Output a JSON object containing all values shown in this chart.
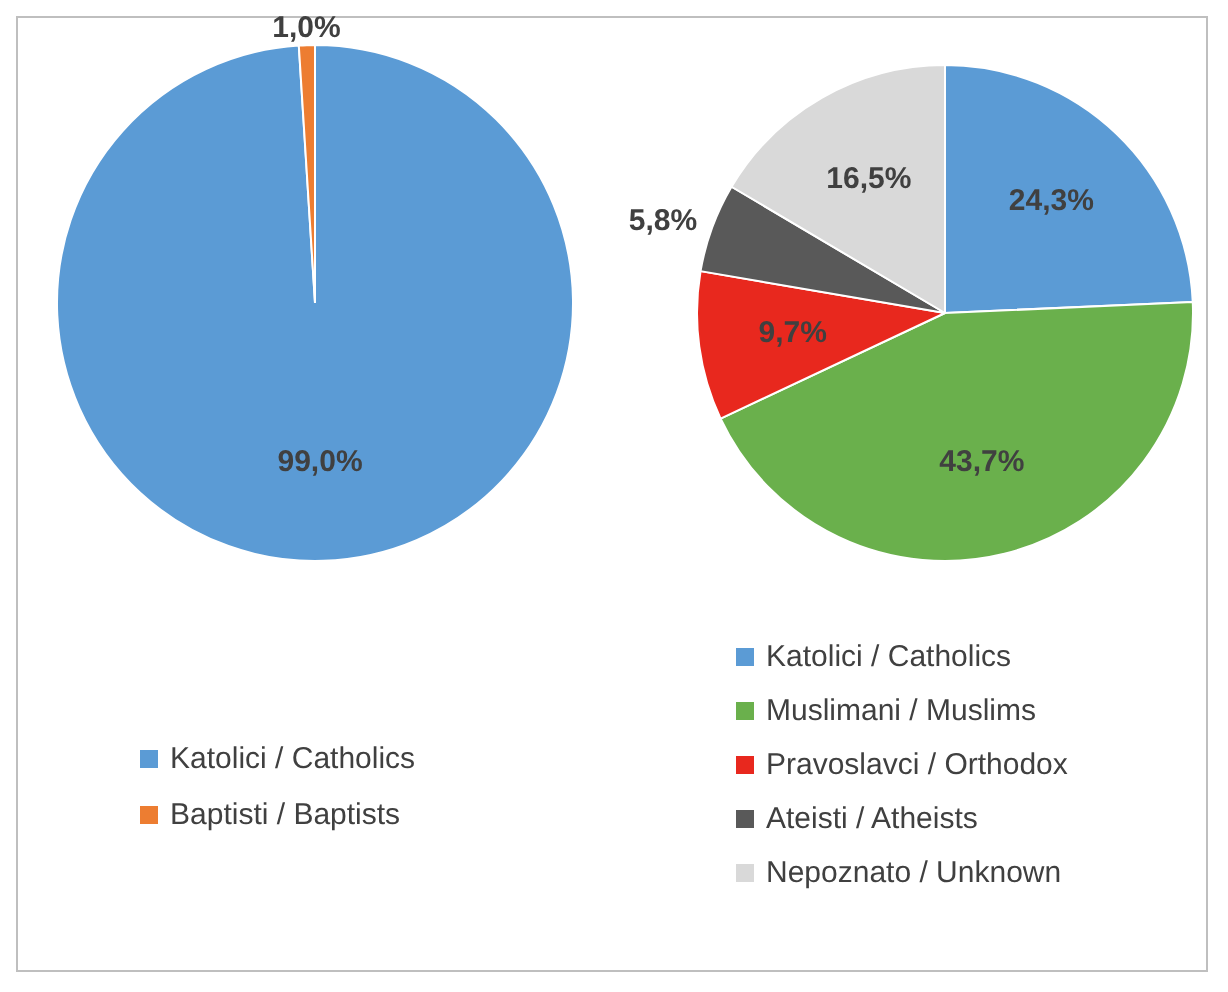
{
  "chart_data": [
    {
      "type": "pie",
      "categories": [
        "Katolici / Catholics",
        "Baptisti / Baptists"
      ],
      "values": [
        99.0,
        1.0
      ],
      "colors": [
        "#5b9bd5",
        "#ed7d31"
      ],
      "value_labels": [
        "99,0%",
        "1,0%"
      ],
      "legend": "bottom"
    },
    {
      "type": "pie",
      "categories": [
        "Katolici / Catholics",
        "Muslimani / Muslims",
        "Pravoslavci / Orthodox",
        "Ateisti / Atheists",
        "Nepoznato / Unknown"
      ],
      "values": [
        24.3,
        43.7,
        9.7,
        5.8,
        16.5
      ],
      "colors": [
        "#5b9bd5",
        "#6ab04c",
        "#e8281e",
        "#595959",
        "#d9d9d9"
      ],
      "value_labels": [
        "24,3%",
        "43,7%",
        "9,7%",
        "5,8%",
        "16,5%"
      ],
      "legend": "bottom"
    }
  ]
}
